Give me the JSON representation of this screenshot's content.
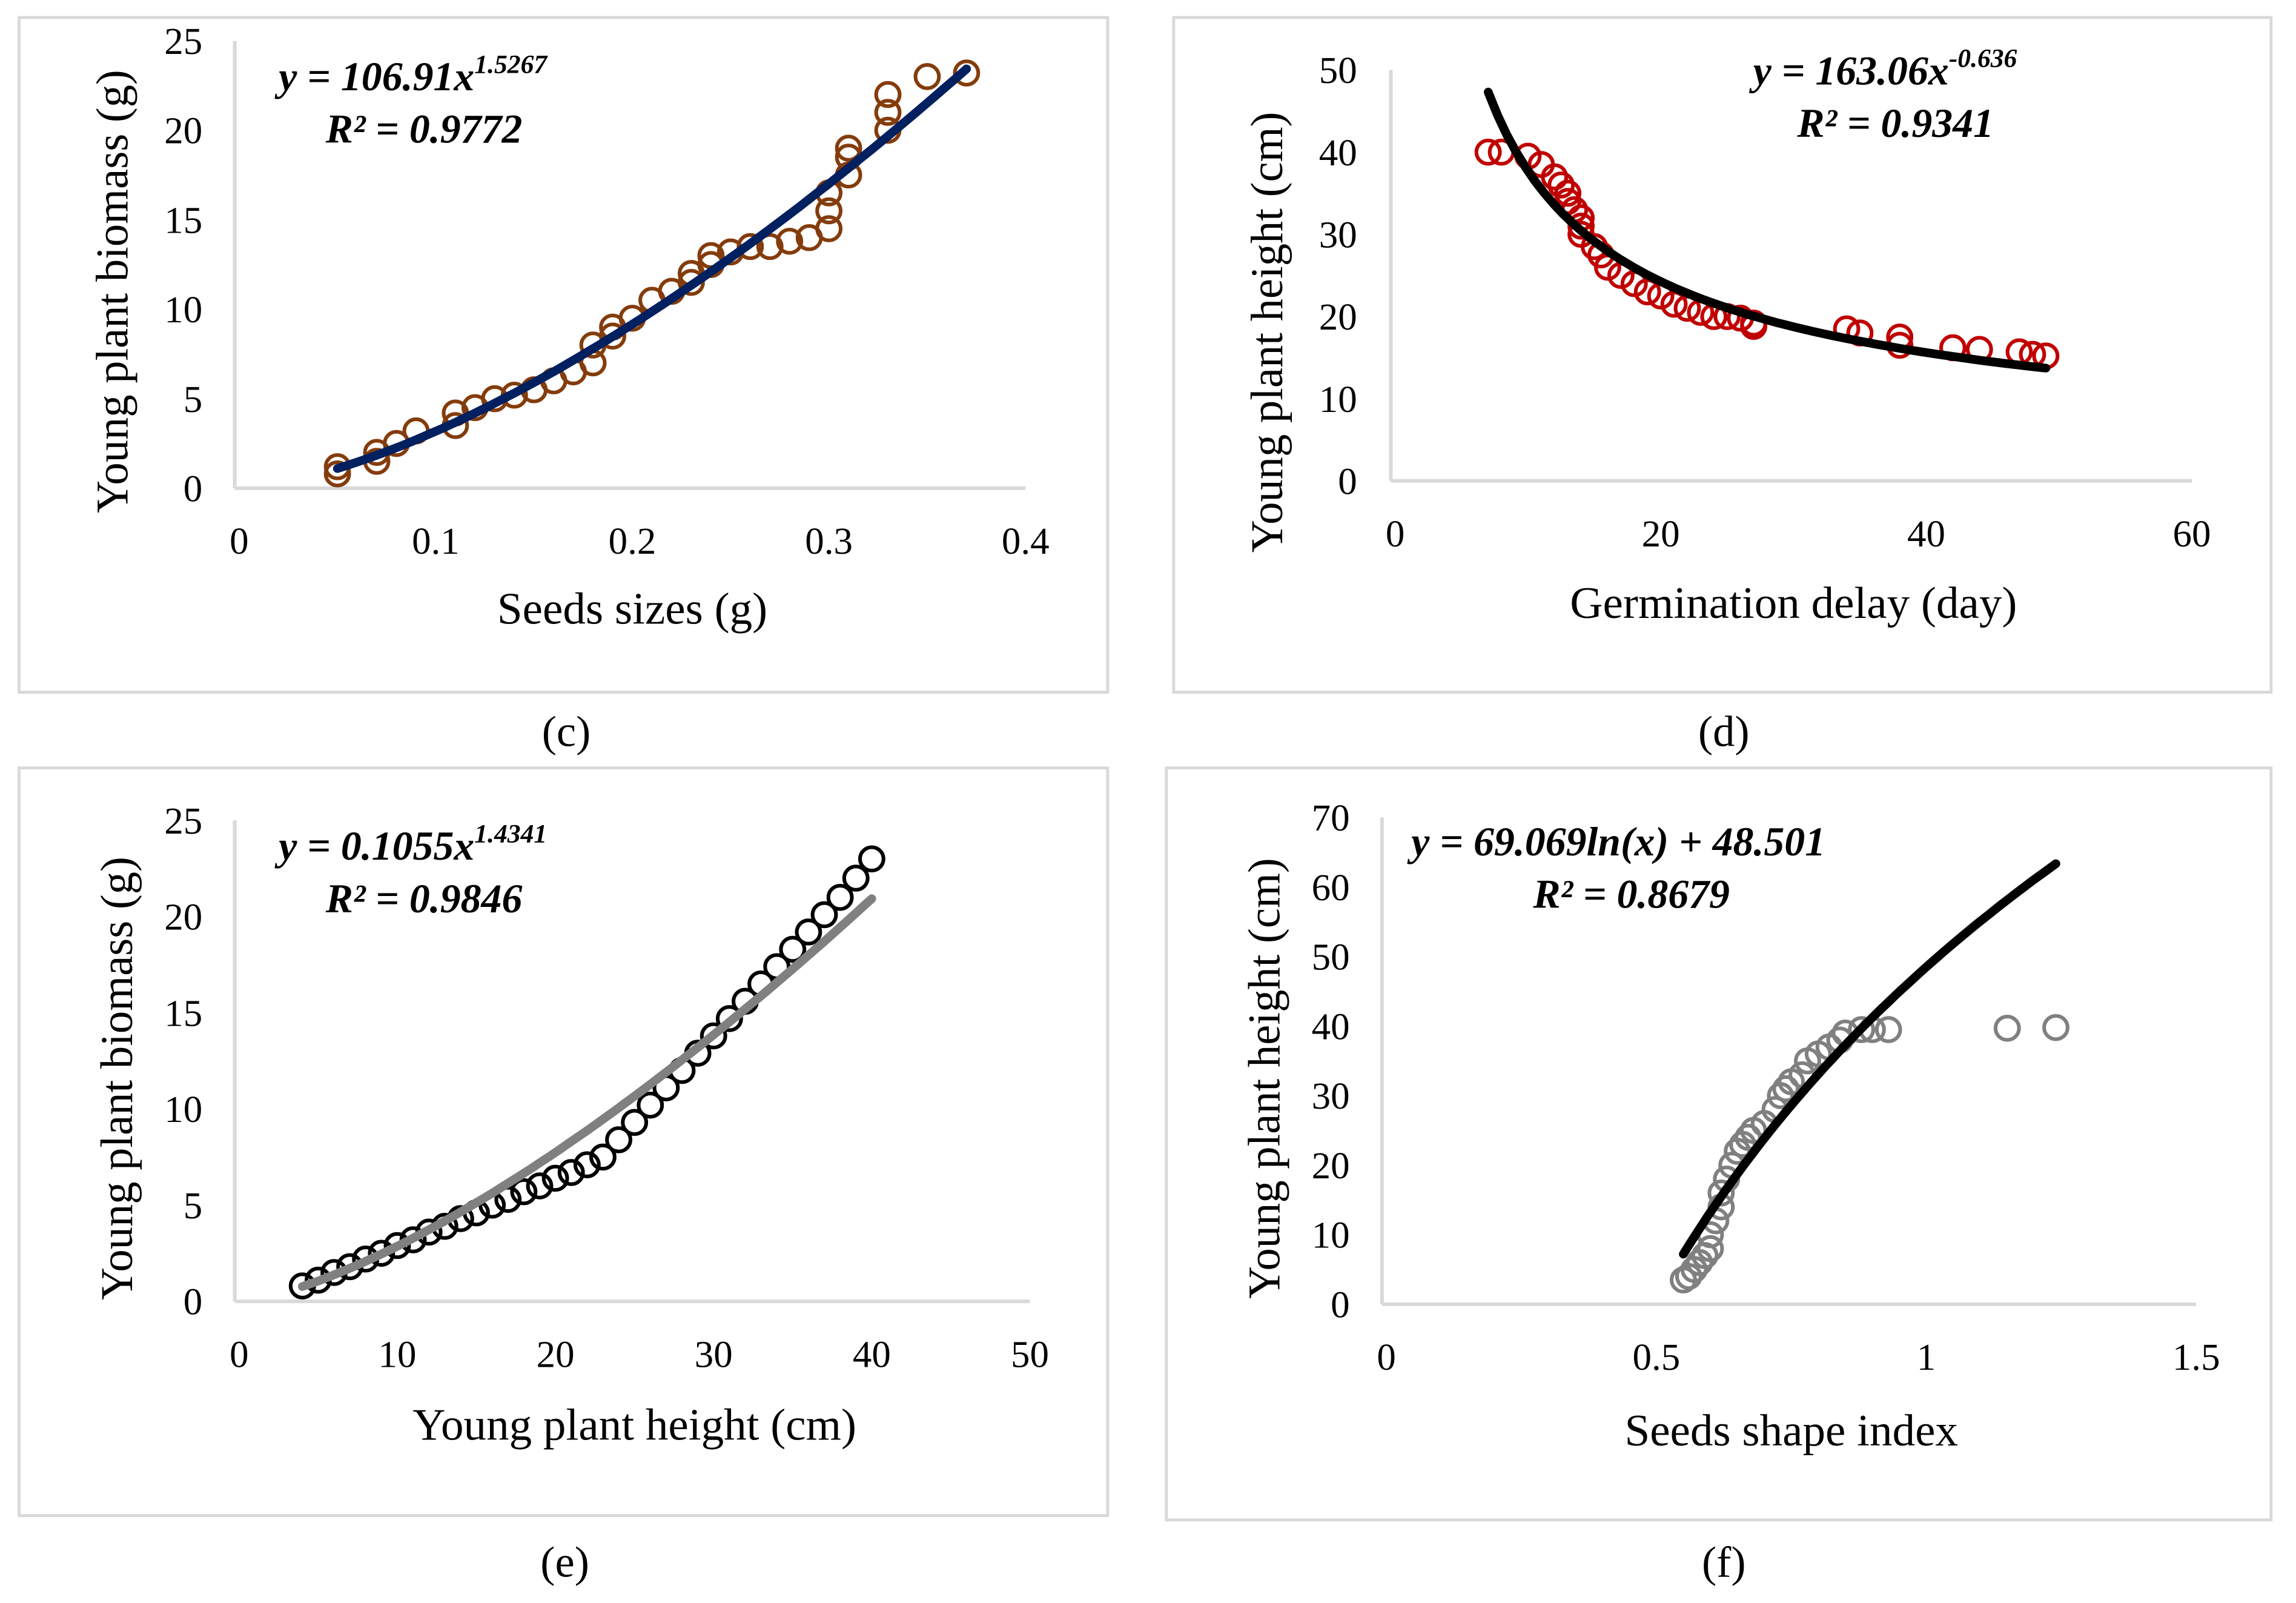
{
  "chart_data": [
    {
      "id": "c",
      "panel_label": "(c)",
      "type": "scatter",
      "xlabel": "Seeds sizes (g)",
      "ylabel": "Young plant biomass (g)",
      "xlim": [
        0,
        0.4
      ],
      "ylim": [
        0,
        25
      ],
      "xticks": [
        "0",
        "0.1",
        "0.2",
        "0.3",
        "0.4"
      ],
      "yticks": [
        "0",
        "5",
        "10",
        "15",
        "20",
        "25"
      ],
      "marker_color": "#843C0C",
      "trend_color": "#002060",
      "equation": "y = 106.91x",
      "exponent": "1.5267",
      "r2": "R² = 0.9772",
      "trend": {
        "kind": "power",
        "a": 106.91,
        "b": 1.5267,
        "xrange": [
          0.05,
          0.37
        ]
      },
      "points": [
        [
          0.05,
          0.8
        ],
        [
          0.05,
          1.2
        ],
        [
          0.07,
          1.5
        ],
        [
          0.07,
          2
        ],
        [
          0.08,
          2.5
        ],
        [
          0.09,
          3.2
        ],
        [
          0.11,
          3.5
        ],
        [
          0.11,
          4.2
        ],
        [
          0.12,
          4.5
        ],
        [
          0.13,
          5
        ],
        [
          0.14,
          5.2
        ],
        [
          0.15,
          5.5
        ],
        [
          0.16,
          6
        ],
        [
          0.17,
          6.5
        ],
        [
          0.18,
          7
        ],
        [
          0.18,
          8
        ],
        [
          0.19,
          8.5
        ],
        [
          0.19,
          9
        ],
        [
          0.2,
          9.5
        ],
        [
          0.21,
          10.5
        ],
        [
          0.22,
          11
        ],
        [
          0.23,
          11.5
        ],
        [
          0.23,
          12
        ],
        [
          0.24,
          12.5
        ],
        [
          0.24,
          13
        ],
        [
          0.25,
          13.2
        ],
        [
          0.26,
          13.5
        ],
        [
          0.27,
          13.5
        ],
        [
          0.28,
          13.8
        ],
        [
          0.29,
          14
        ],
        [
          0.3,
          14.5
        ],
        [
          0.3,
          15.5
        ],
        [
          0.3,
          16.5
        ],
        [
          0.31,
          17.5
        ],
        [
          0.31,
          18.5
        ],
        [
          0.31,
          19
        ],
        [
          0.33,
          20
        ],
        [
          0.33,
          21
        ],
        [
          0.33,
          22
        ],
        [
          0.35,
          23
        ],
        [
          0.37,
          23.2
        ]
      ]
    },
    {
      "id": "d",
      "panel_label": "(d)",
      "type": "scatter",
      "xlabel": "Germination delay (day)",
      "ylabel": "Young plant height (cm)",
      "xlim": [
        0,
        60
      ],
      "ylim": [
        0,
        50
      ],
      "xticks": [
        "0",
        "20",
        "40",
        "60"
      ],
      "yticks": [
        "0",
        "10",
        "20",
        "30",
        "40",
        "50"
      ],
      "marker_color": "#C00000",
      "trend_color": "#000000",
      "equation": "y = 163.06x",
      "exponent": "-0.636",
      "r2": "R² = 0.9341",
      "trend": {
        "kind": "power",
        "a": 163.06,
        "b": -0.636,
        "xrange": [
          7,
          49
        ]
      },
      "points": [
        [
          7,
          40
        ],
        [
          8,
          40
        ],
        [
          10,
          39.5
        ],
        [
          11,
          38.5
        ],
        [
          12,
          37
        ],
        [
          12.5,
          36
        ],
        [
          13,
          35
        ],
        [
          13,
          34
        ],
        [
          13.5,
          33
        ],
        [
          14,
          32
        ],
        [
          14,
          31
        ],
        [
          14,
          30
        ],
        [
          15,
          28.5
        ],
        [
          15.5,
          27.5
        ],
        [
          16,
          26
        ],
        [
          17,
          25
        ],
        [
          18,
          24
        ],
        [
          19,
          23
        ],
        [
          20,
          22.5
        ],
        [
          21,
          21.5
        ],
        [
          22,
          21
        ],
        [
          23,
          20.5
        ],
        [
          24,
          20
        ],
        [
          25,
          20
        ],
        [
          26,
          19.8
        ],
        [
          27,
          19.2
        ],
        [
          27,
          18.8
        ],
        [
          34,
          18.5
        ],
        [
          35,
          18
        ],
        [
          38,
          17.5
        ],
        [
          38,
          16.5
        ],
        [
          42,
          16.2
        ],
        [
          44,
          16
        ],
        [
          47,
          15.7
        ],
        [
          48,
          15.4
        ],
        [
          49,
          15.2
        ]
      ]
    },
    {
      "id": "e",
      "panel_label": "(e)",
      "type": "scatter",
      "xlabel": "Young plant height (cm)",
      "ylabel": "Young plant biomass (g)",
      "xlim": [
        0,
        50
      ],
      "ylim": [
        0,
        25
      ],
      "xticks": [
        "0",
        "10",
        "20",
        "30",
        "40",
        "50"
      ],
      "yticks": [
        "0",
        "5",
        "10",
        "15",
        "20",
        "25"
      ],
      "marker_color": "#000000",
      "trend_color": "#808080",
      "equation": "y = 0.1055x",
      "exponent": "1.4341",
      "r2": "R² = 0.9846",
      "trend": {
        "kind": "power",
        "a": 0.1055,
        "b": 1.4341,
        "xrange": [
          4,
          40
        ]
      },
      "points": [
        [
          4,
          0.8
        ],
        [
          5,
          1.1
        ],
        [
          6,
          1.5
        ],
        [
          7,
          1.8
        ],
        [
          8,
          2.2
        ],
        [
          9,
          2.5
        ],
        [
          10,
          2.9
        ],
        [
          11,
          3.2
        ],
        [
          12,
          3.6
        ],
        [
          13,
          3.9
        ],
        [
          14,
          4.3
        ],
        [
          15,
          4.6
        ],
        [
          16,
          5
        ],
        [
          17,
          5.3
        ],
        [
          18,
          5.7
        ],
        [
          19,
          6
        ],
        [
          20,
          6.4
        ],
        [
          21,
          6.7
        ],
        [
          22,
          7.1
        ],
        [
          23,
          7.5
        ],
        [
          24,
          8.4
        ],
        [
          25,
          9.3
        ],
        [
          26,
          10.2
        ],
        [
          27,
          11.1
        ],
        [
          28,
          12
        ],
        [
          29,
          12.9
        ],
        [
          30,
          13.8
        ],
        [
          31,
          14.7
        ],
        [
          32,
          15.6
        ],
        [
          33,
          16.5
        ],
        [
          34,
          17.4
        ],
        [
          35,
          18.3
        ],
        [
          36,
          19.2
        ],
        [
          37,
          20.1
        ],
        [
          38,
          21
        ],
        [
          39,
          22
        ],
        [
          40,
          23
        ]
      ]
    },
    {
      "id": "f",
      "panel_label": "(f)",
      "type": "scatter",
      "xlabel": "Seeds shape index",
      "ylabel": "Young plant height (cm)",
      "xlim": [
        0,
        1.5
      ],
      "ylim": [
        0,
        70
      ],
      "xticks": [
        "0",
        "0.5",
        "1",
        "1.5"
      ],
      "yticks": [
        "0",
        "10",
        "20",
        "30",
        "40",
        "50",
        "60",
        "70"
      ],
      "marker_color": "#808080",
      "trend_color": "#000000",
      "equation": "y = 69.069ln(x) + 48.501",
      "exponent": "",
      "r2": "R² = 0.8679",
      "trend": {
        "kind": "log",
        "a": 69.069,
        "b": 48.501,
        "xrange": [
          0.55,
          1.24
        ]
      },
      "points": [
        [
          0.55,
          3.5
        ],
        [
          0.56,
          4
        ],
        [
          0.57,
          5
        ],
        [
          0.58,
          6
        ],
        [
          0.59,
          7
        ],
        [
          0.6,
          8
        ],
        [
          0.6,
          10
        ],
        [
          0.61,
          12
        ],
        [
          0.62,
          14
        ],
        [
          0.62,
          16
        ],
        [
          0.63,
          18
        ],
        [
          0.64,
          20
        ],
        [
          0.65,
          22
        ],
        [
          0.66,
          23
        ],
        [
          0.67,
          24
        ],
        [
          0.68,
          25
        ],
        [
          0.7,
          26
        ],
        [
          0.72,
          28
        ],
        [
          0.73,
          30
        ],
        [
          0.74,
          31
        ],
        [
          0.75,
          32
        ],
        [
          0.77,
          33
        ],
        [
          0.78,
          35
        ],
        [
          0.8,
          36
        ],
        [
          0.82,
          37
        ],
        [
          0.84,
          38
        ],
        [
          0.85,
          39
        ],
        [
          0.88,
          39.5
        ],
        [
          0.9,
          39.5
        ],
        [
          0.93,
          39.5
        ],
        [
          1.15,
          39.7
        ],
        [
          1.24,
          39.8
        ]
      ]
    }
  ]
}
